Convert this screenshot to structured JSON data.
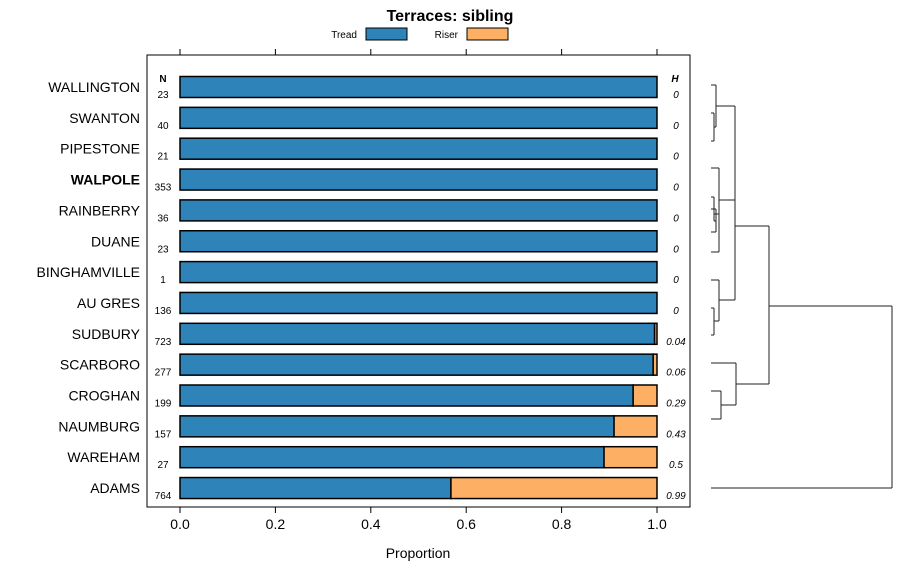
{
  "chart_data": {
    "type": "bar",
    "stacked": true,
    "orientation": "horizontal",
    "title": "Terraces: sibling",
    "xlabel": "Proportion",
    "ylabel": "",
    "xlim": [
      0,
      1
    ],
    "xticks": [
      "0.0",
      "0.2",
      "0.4",
      "0.6",
      "0.8",
      "1.0"
    ],
    "legend": {
      "placement": "top",
      "entries": [
        {
          "name": "Tread",
          "color": "#2E83B8"
        },
        {
          "name": "Riser",
          "color": "#FDB064"
        }
      ]
    },
    "n_header": "N",
    "h_header": "H",
    "categories": [
      "WALLINGTON",
      "SWANTON",
      "PIPESTONE",
      "WALPOLE",
      "RAINBERRY",
      "DUANE",
      "BINGHAMVILLE",
      "AU GRES",
      "SUDBURY",
      "SCARBORO",
      "CROGHAN",
      "NAUMBURG",
      "WAREHAM",
      "ADAMS"
    ],
    "highlight": "WALPOLE",
    "n": [
      "23",
      "40",
      "21",
      "353",
      "36",
      "23",
      "1",
      "136",
      "723",
      "277",
      "199",
      "157",
      "27",
      "764"
    ],
    "h": [
      "0",
      "0",
      "0",
      "0",
      "0",
      "0",
      "0",
      "0",
      "0.04",
      "0.06",
      "0.29",
      "0.43",
      "0.5",
      "0.99"
    ],
    "series": [
      {
        "name": "Tread",
        "values": [
          1,
          1,
          1,
          1,
          1,
          1,
          1,
          1,
          0.995,
          0.992,
          0.95,
          0.91,
          0.889,
          0.568
        ]
      },
      {
        "name": "Riser",
        "values": [
          0,
          0,
          0,
          0,
          0,
          0,
          0,
          0,
          0.005,
          0.008,
          0.05,
          0.09,
          0.111,
          0.432
        ]
      }
    ],
    "dendrogram": "hierarchical clustering of rows shown at right"
  }
}
